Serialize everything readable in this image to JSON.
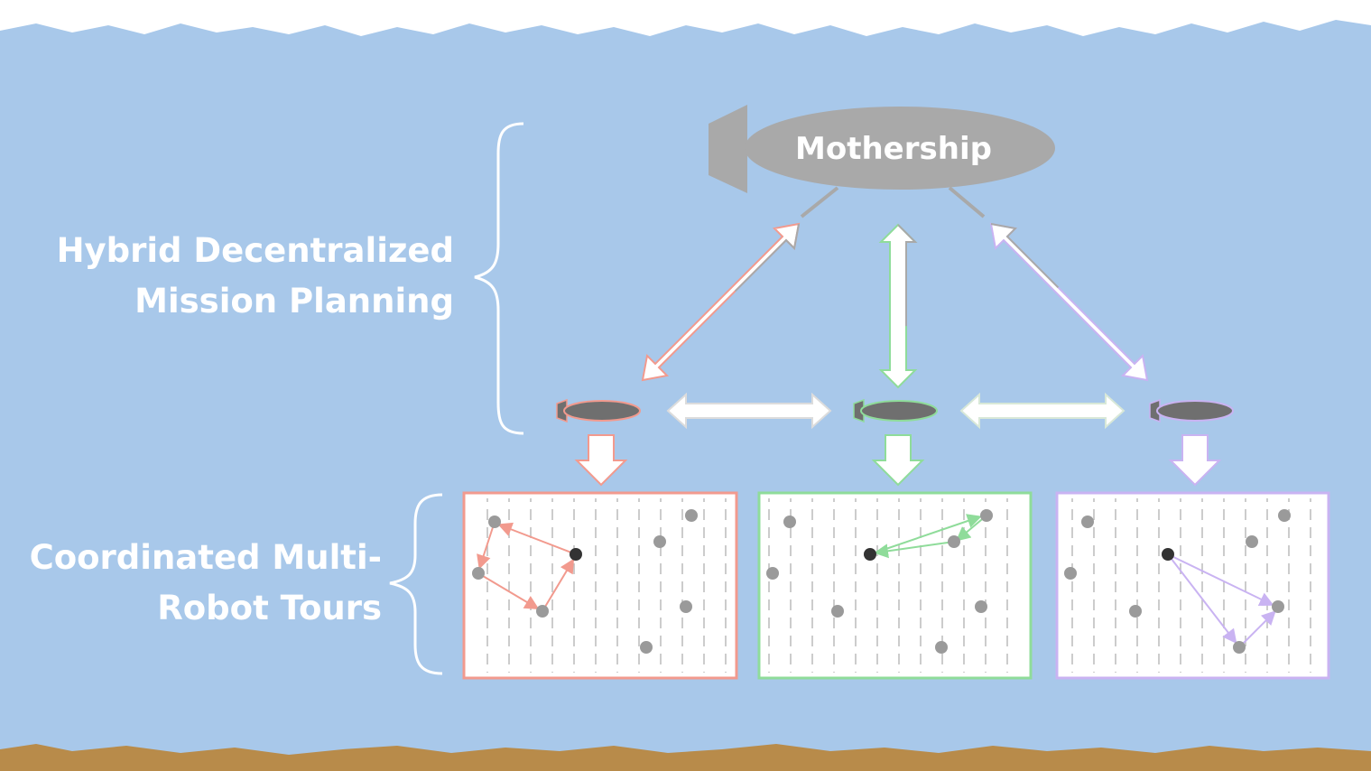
{
  "title_left_planning": [
    "Hybrid Decentralized",
    "Mission Planning"
  ],
  "title_left_tours": [
    "Coordinated Multi-",
    "Robot Tours"
  ],
  "mothership_label": "Mothership",
  "colors": {
    "water": "#a8c8ea",
    "sky_surface": "#ffffff",
    "seabed": "#b88b4a",
    "mothership": "#a9a9a9",
    "vehicle_body": "#6f6f6f",
    "robot_1": "#f29a8e",
    "robot_2": "#8fdc9a",
    "robot_3": "#c9b3f2",
    "waypoint": "#9a9a9a",
    "depot": "#333333"
  },
  "robots": [
    {
      "id": "robot-1",
      "color": "#f29a8e"
    },
    {
      "id": "robot-2",
      "color": "#8fdc9a"
    },
    {
      "id": "robot-3",
      "color": "#c9b3f2"
    }
  ],
  "waypoints_description_only": "grey task points, black start point",
  "icons": [
    "mothership-icon",
    "auv-icon",
    "double-arrow-icon",
    "down-arrow-icon",
    "brace-icon"
  ]
}
